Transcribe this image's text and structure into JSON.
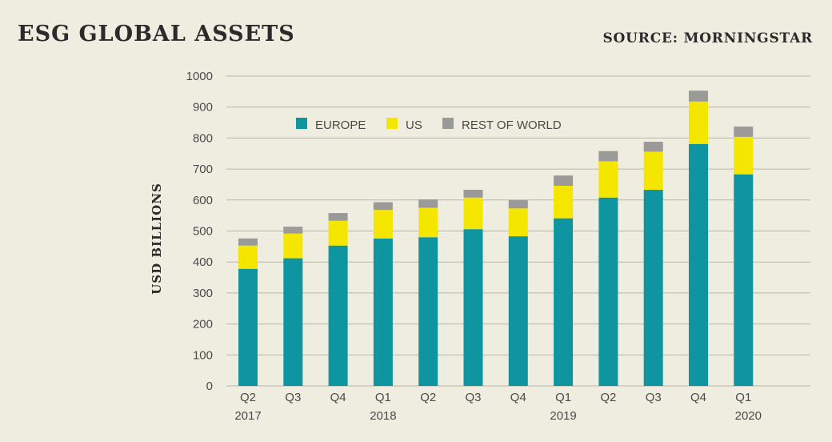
{
  "header": {
    "title": "ESG GLOBAL ASSETS",
    "source": "SOURCE: MORNINGSTAR"
  },
  "colors": {
    "background": "#efece0",
    "grid": "#b9b7ad",
    "europe": "#0f95a0",
    "us": "#f5e600",
    "rest_of_world": "#9a9a98"
  },
  "chart_data": {
    "type": "bar",
    "stacked": true,
    "title": "ESG GLOBAL ASSETS",
    "xlabel": "",
    "ylabel": "USD BILLIONS",
    "ylim": [
      0,
      1000
    ],
    "yticks": [
      0,
      100,
      200,
      300,
      400,
      500,
      600,
      700,
      800,
      900,
      1000
    ],
    "grid": true,
    "legend_position": "top-center",
    "categories": [
      "Q2",
      "Q3",
      "Q4",
      "Q1",
      "Q2",
      "Q3",
      "Q4",
      "Q1",
      "Q2",
      "Q3",
      "Q4",
      "Q1"
    ],
    "year_labels": [
      {
        "label": "2017",
        "category_index": 0
      },
      {
        "label": "2018",
        "category_index": 3
      },
      {
        "label": "2019",
        "category_index": 7
      },
      {
        "label": "2020",
        "category_index": 11
      }
    ],
    "series": [
      {
        "name": "EUROPE",
        "color": "#0f95a0",
        "values": [
          378,
          412,
          453,
          476,
          480,
          506,
          483,
          541,
          608,
          633,
          781,
          683
        ]
      },
      {
        "name": "US",
        "color": "#f5e600",
        "values": [
          75,
          80,
          80,
          92,
          95,
          102,
          90,
          105,
          117,
          123,
          137,
          121
        ]
      },
      {
        "name": "REST OF WORLD",
        "color": "#9a9a98",
        "values": [
          23,
          22,
          25,
          25,
          27,
          25,
          27,
          33,
          33,
          32,
          35,
          33
        ]
      }
    ]
  }
}
